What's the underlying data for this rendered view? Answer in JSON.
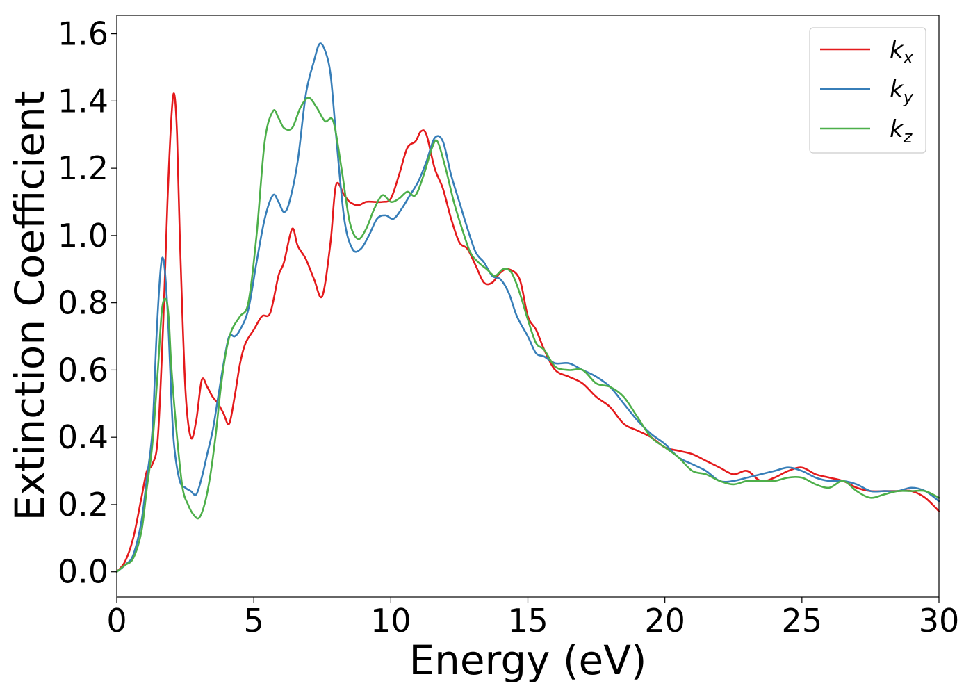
{
  "chart_data": {
    "type": "line",
    "title": "",
    "xlabel": "Energy (eV)",
    "ylabel": "Extinction Coefficient",
    "xlim": [
      0,
      30
    ],
    "ylim": [
      -0.075,
      1.655
    ],
    "xticks": [
      0,
      5,
      10,
      15,
      20,
      25,
      30
    ],
    "xtick_labels": [
      "0",
      "5",
      "10",
      "15",
      "20",
      "25",
      "30"
    ],
    "yticks": [
      0.0,
      0.2,
      0.4,
      0.6,
      0.8,
      1.0,
      1.2,
      1.4,
      1.6
    ],
    "ytick_labels": [
      "0.0",
      "0.2",
      "0.4",
      "0.6",
      "0.8",
      "1.0",
      "1.2",
      "1.4",
      "1.6"
    ],
    "grid": false,
    "legend_position": "top-right",
    "series": [
      {
        "name": "kx",
        "base": "k",
        "sub": "x",
        "color": "#e41a1c",
        "x": [
          0,
          0.3,
          0.6,
          0.9,
          1.1,
          1.3,
          1.5,
          1.7,
          1.85,
          2.0,
          2.1,
          2.2,
          2.3,
          2.5,
          2.7,
          2.9,
          3.1,
          3.3,
          3.5,
          3.7,
          3.9,
          4.1,
          4.3,
          4.5,
          4.7,
          5.0,
          5.3,
          5.6,
          5.9,
          6.1,
          6.4,
          6.6,
          6.9,
          7.2,
          7.5,
          7.8,
          8.0,
          8.3,
          8.5,
          8.8,
          9.1,
          9.4,
          9.7,
          10.0,
          10.3,
          10.6,
          10.9,
          11.1,
          11.3,
          11.6,
          11.9,
          12.2,
          12.5,
          12.8,
          13.1,
          13.4,
          13.7,
          14.0,
          14.3,
          14.7,
          15.0,
          15.3,
          15.6,
          16.0,
          16.5,
          17.0,
          17.5,
          18.0,
          18.5,
          19.0,
          19.5,
          20.0,
          20.5,
          21.0,
          21.5,
          22.0,
          22.5,
          23.0,
          23.5,
          24.0,
          24.5,
          25.0,
          25.5,
          26.0,
          26.5,
          27.0,
          27.5,
          28.0,
          28.5,
          29.0,
          29.5,
          30.0
        ],
        "y": [
          0.0,
          0.03,
          0.1,
          0.22,
          0.3,
          0.32,
          0.4,
          0.75,
          1.1,
          1.36,
          1.42,
          1.3,
          1.0,
          0.55,
          0.4,
          0.45,
          0.57,
          0.55,
          0.52,
          0.5,
          0.47,
          0.44,
          0.52,
          0.62,
          0.68,
          0.72,
          0.76,
          0.77,
          0.88,
          0.92,
          1.02,
          0.97,
          0.93,
          0.87,
          0.82,
          0.98,
          1.15,
          1.12,
          1.1,
          1.09,
          1.1,
          1.1,
          1.1,
          1.11,
          1.18,
          1.26,
          1.28,
          1.31,
          1.3,
          1.2,
          1.14,
          1.05,
          0.98,
          0.96,
          0.91,
          0.86,
          0.86,
          0.89,
          0.9,
          0.87,
          0.76,
          0.72,
          0.66,
          0.6,
          0.58,
          0.56,
          0.52,
          0.49,
          0.44,
          0.42,
          0.4,
          0.37,
          0.36,
          0.35,
          0.33,
          0.31,
          0.29,
          0.3,
          0.27,
          0.28,
          0.3,
          0.31,
          0.29,
          0.28,
          0.27,
          0.25,
          0.24,
          0.24,
          0.24,
          0.24,
          0.22,
          0.18
        ]
      },
      {
        "name": "ky",
        "base": "k",
        "sub": "y",
        "color": "#377eb8",
        "x": [
          0,
          0.3,
          0.6,
          0.9,
          1.1,
          1.3,
          1.45,
          1.6,
          1.7,
          1.8,
          1.9,
          2.0,
          2.1,
          2.3,
          2.5,
          2.7,
          2.9,
          3.1,
          3.3,
          3.5,
          3.7,
          3.9,
          4.1,
          4.3,
          4.5,
          4.8,
          5.1,
          5.4,
          5.7,
          5.9,
          6.1,
          6.3,
          6.6,
          6.9,
          7.2,
          7.4,
          7.6,
          7.8,
          8.0,
          8.3,
          8.6,
          8.9,
          9.2,
          9.5,
          9.8,
          10.1,
          10.4,
          10.7,
          11.0,
          11.3,
          11.6,
          11.9,
          12.2,
          12.5,
          12.8,
          13.1,
          13.4,
          13.7,
          14.0,
          14.3,
          14.6,
          15.0,
          15.3,
          15.6,
          16.0,
          16.5,
          17.0,
          17.5,
          18.0,
          18.5,
          19.0,
          19.5,
          20.0,
          20.5,
          21.0,
          21.5,
          22.0,
          22.5,
          23.0,
          23.5,
          24.0,
          24.5,
          25.0,
          25.5,
          26.0,
          26.5,
          27.0,
          27.5,
          28.0,
          28.5,
          29.0,
          29.5,
          30.0
        ],
        "y": [
          0.0,
          0.02,
          0.05,
          0.15,
          0.28,
          0.42,
          0.7,
          0.9,
          0.93,
          0.85,
          0.7,
          0.5,
          0.37,
          0.27,
          0.25,
          0.24,
          0.23,
          0.28,
          0.35,
          0.42,
          0.52,
          0.62,
          0.7,
          0.7,
          0.72,
          0.78,
          0.92,
          1.05,
          1.12,
          1.1,
          1.07,
          1.1,
          1.22,
          1.42,
          1.52,
          1.57,
          1.55,
          1.48,
          1.3,
          1.05,
          0.96,
          0.96,
          1.0,
          1.05,
          1.06,
          1.05,
          1.08,
          1.12,
          1.16,
          1.22,
          1.29,
          1.28,
          1.18,
          1.1,
          1.02,
          0.95,
          0.92,
          0.88,
          0.87,
          0.83,
          0.76,
          0.7,
          0.65,
          0.64,
          0.62,
          0.62,
          0.6,
          0.58,
          0.55,
          0.5,
          0.45,
          0.41,
          0.38,
          0.34,
          0.32,
          0.3,
          0.27,
          0.27,
          0.28,
          0.29,
          0.3,
          0.31,
          0.3,
          0.28,
          0.27,
          0.27,
          0.26,
          0.24,
          0.24,
          0.24,
          0.25,
          0.24,
          0.21
        ]
      },
      {
        "name": "kz",
        "base": "k",
        "sub": "z",
        "color": "#4daf4a",
        "x": [
          0,
          0.3,
          0.6,
          0.9,
          1.1,
          1.3,
          1.5,
          1.65,
          1.8,
          1.9,
          2.0,
          2.2,
          2.4,
          2.6,
          2.8,
          3.0,
          3.2,
          3.4,
          3.6,
          3.8,
          4.0,
          4.2,
          4.5,
          4.8,
          5.1,
          5.4,
          5.7,
          5.9,
          6.1,
          6.4,
          6.7,
          7.0,
          7.3,
          7.6,
          7.9,
          8.2,
          8.5,
          8.8,
          9.1,
          9.4,
          9.7,
          10.0,
          10.3,
          10.6,
          10.9,
          11.2,
          11.5,
          11.7,
          12.0,
          12.3,
          12.6,
          12.9,
          13.2,
          13.5,
          13.8,
          14.1,
          14.4,
          14.7,
          15.0,
          15.3,
          15.6,
          16.0,
          16.5,
          17.0,
          17.5,
          18.0,
          18.5,
          19.0,
          19.5,
          20.0,
          20.5,
          21.0,
          21.5,
          22.0,
          22.5,
          23.0,
          23.5,
          24.0,
          24.5,
          25.0,
          25.5,
          26.0,
          26.5,
          27.0,
          27.5,
          28.0,
          28.5,
          29.0,
          29.5,
          30.0
        ],
        "y": [
          0.0,
          0.02,
          0.04,
          0.12,
          0.25,
          0.38,
          0.6,
          0.78,
          0.81,
          0.75,
          0.6,
          0.4,
          0.25,
          0.2,
          0.17,
          0.16,
          0.2,
          0.28,
          0.4,
          0.55,
          0.66,
          0.72,
          0.76,
          0.8,
          1.0,
          1.28,
          1.37,
          1.35,
          1.32,
          1.32,
          1.38,
          1.41,
          1.38,
          1.34,
          1.34,
          1.2,
          1.04,
          0.99,
          1.02,
          1.08,
          1.12,
          1.1,
          1.11,
          1.13,
          1.12,
          1.18,
          1.26,
          1.28,
          1.2,
          1.1,
          1.02,
          0.95,
          0.92,
          0.9,
          0.88,
          0.9,
          0.89,
          0.83,
          0.75,
          0.68,
          0.66,
          0.61,
          0.6,
          0.6,
          0.56,
          0.55,
          0.52,
          0.46,
          0.4,
          0.37,
          0.34,
          0.3,
          0.29,
          0.27,
          0.26,
          0.27,
          0.27,
          0.27,
          0.28,
          0.28,
          0.26,
          0.25,
          0.27,
          0.24,
          0.22,
          0.23,
          0.24,
          0.24,
          0.24,
          0.22
        ]
      }
    ]
  }
}
